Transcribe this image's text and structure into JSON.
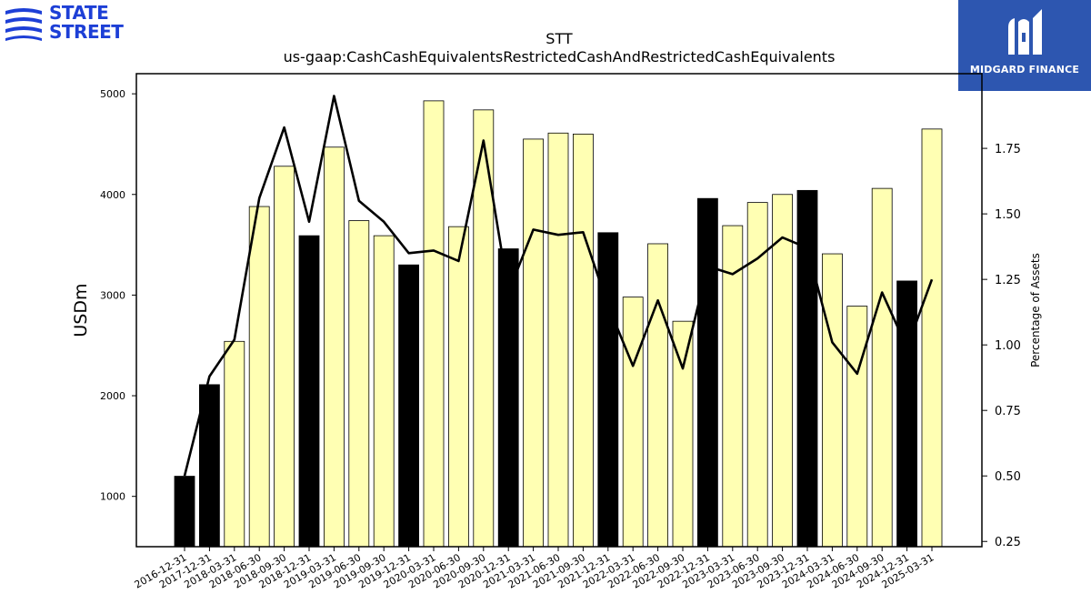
{
  "brand": {
    "left_logo_line1": "STATE",
    "left_logo_line2": "STREET",
    "left_logo_color": "#1d3fd6",
    "right_logo_text": "MIDGARD FINANCE",
    "right_logo_bg": "#2d56b0",
    "right_logo_icon": "midgard-m-icon"
  },
  "chart_data": {
    "type": "bar",
    "title": "STT",
    "subtitle": "us-gaap:CashCashEquivalentsRestrictedCashAndRestrictedCashEquivalents",
    "ylabel": "USDm",
    "y2label": "Percentage of Assets",
    "ylim": [
      500,
      5200
    ],
    "y2lim": [
      0.23,
      2.035
    ],
    "yticks": [
      1000,
      2000,
      3000,
      4000,
      5000
    ],
    "y2ticks": [
      0.25,
      0.5,
      0.75,
      1.0,
      1.25,
      1.5,
      1.75
    ],
    "categories": [
      "2016-12-31",
      "2017-12-31",
      "2018-03-31",
      "2018-06-30",
      "2018-09-30",
      "2018-12-31",
      "2019-03-31",
      "2019-06-30",
      "2019-09-30",
      "2019-12-31",
      "2020-03-31",
      "2020-06-30",
      "2020-09-30",
      "2020-12-31",
      "2021-03-31",
      "2021-06-30",
      "2021-09-30",
      "2021-12-31",
      "2022-03-31",
      "2022-06-30",
      "2022-09-30",
      "2022-12-31",
      "2023-03-31",
      "2023-06-30",
      "2023-09-30",
      "2023-12-31",
      "2024-03-31",
      "2024-06-30",
      "2024-09-30",
      "2024-12-31",
      "2025-03-31"
    ],
    "series": [
      {
        "kind": "bar",
        "values": [
          1200,
          2110,
          2540,
          3880,
          4280,
          3590,
          4470,
          3740,
          3590,
          3300,
          4930,
          3680,
          4840,
          3460,
          4550,
          4610,
          4600,
          3620,
          2980,
          3510,
          2740,
          3960,
          3690,
          3920,
          4000,
          4040,
          3410,
          2890,
          4060,
          3140,
          4650
        ],
        "annual_flags": [
          true,
          true,
          false,
          false,
          false,
          true,
          false,
          false,
          false,
          true,
          false,
          false,
          false,
          true,
          false,
          false,
          false,
          true,
          false,
          false,
          false,
          true,
          false,
          false,
          false,
          true,
          false,
          false,
          false,
          true,
          false
        ]
      },
      {
        "kind": "line",
        "axis": "right",
        "values": [
          0.5,
          0.88,
          1.02,
          1.56,
          1.83,
          1.47,
          1.95,
          1.55,
          1.47,
          1.35,
          1.36,
          1.32,
          1.78,
          1.2,
          1.44,
          1.42,
          1.43,
          1.15,
          0.92,
          1.17,
          0.91,
          1.3,
          1.27,
          1.33,
          1.41,
          1.37,
          1.01,
          0.89,
          1.2,
          0.99,
          1.25
        ]
      }
    ],
    "colors": {
      "annual_bar": "#000000",
      "quarter_bar": "#ffffb3",
      "bar_edge": "#000000",
      "line": "#000000"
    },
    "grid": false
  }
}
